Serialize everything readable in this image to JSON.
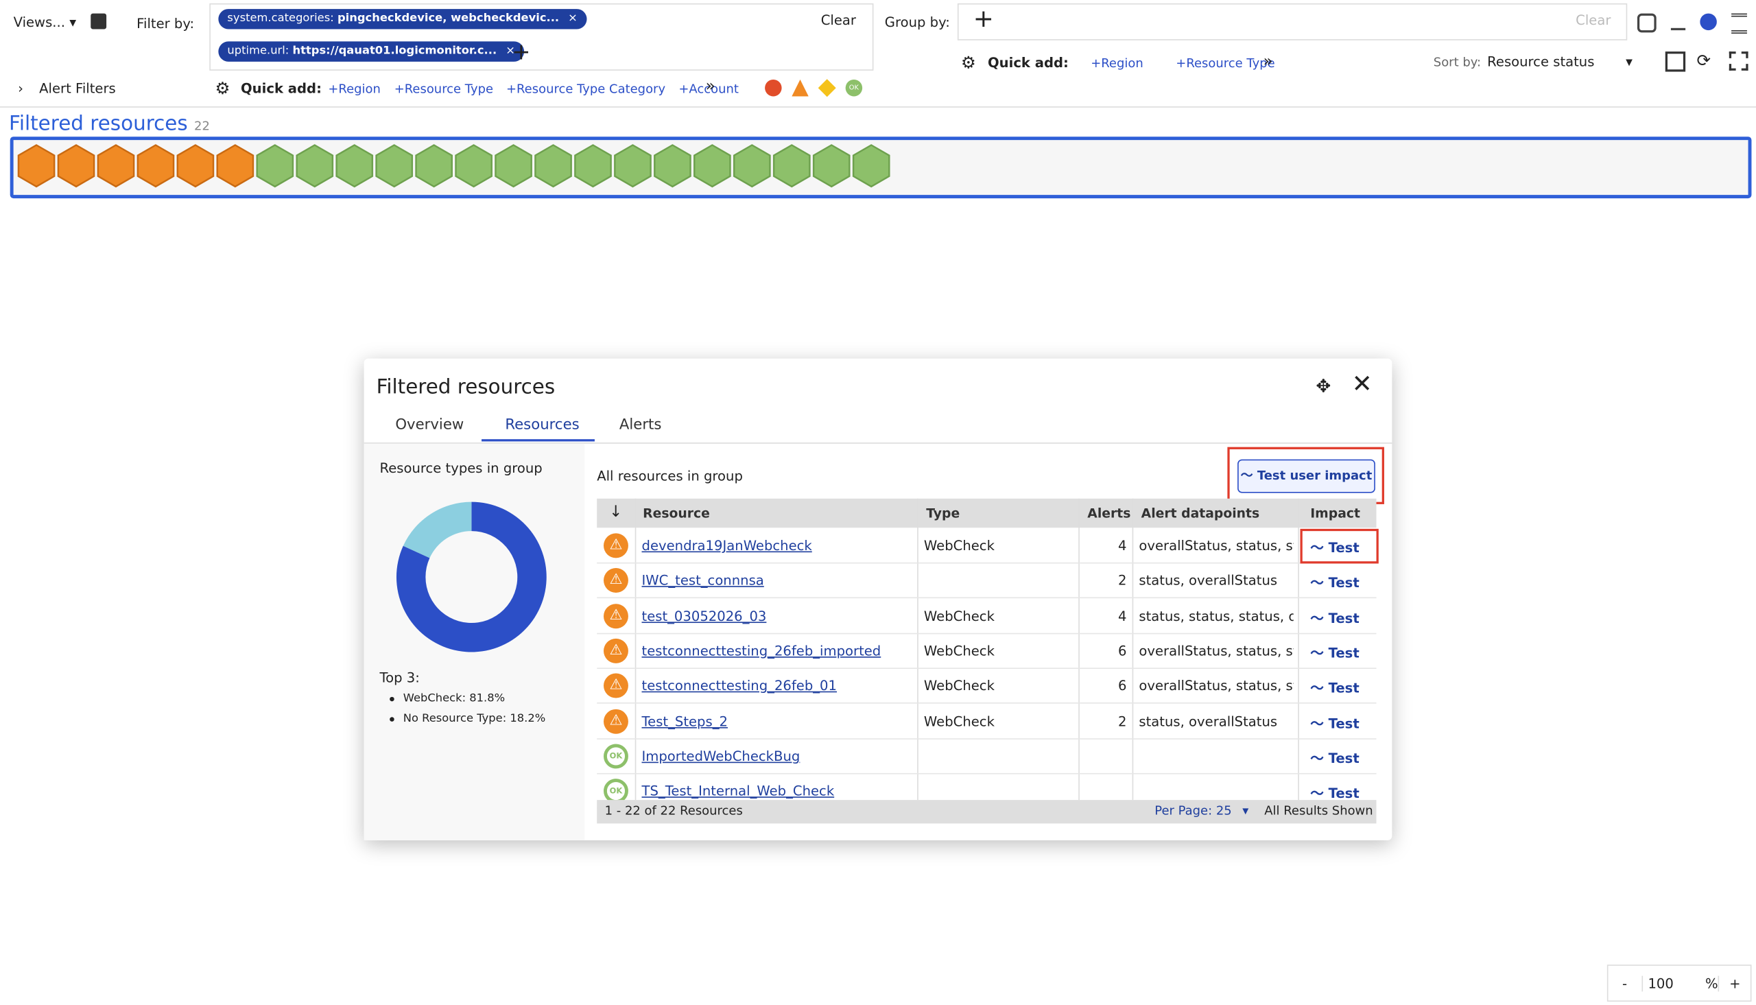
{
  "toolbar": {
    "views": "Views...",
    "filter_by": "Filter by:",
    "chips": [
      {
        "key": "system.categories:",
        "value": "pingcheckdevice, webcheckdevic..."
      },
      {
        "key": "uptime.url:",
        "value": "https://qauat01.logicmonitor.c..."
      }
    ],
    "clear": "Clear",
    "group_by": "Group by:",
    "group_clear": "Clear",
    "alert_filters": "Alert Filters",
    "quick_add": "Quick add:",
    "quick_links": [
      "+Region",
      "+Resource Type",
      "+Resource Type Category",
      "+Account"
    ],
    "quick_add_right": "Quick add:",
    "quick_links_right": [
      "+Region",
      "+Resource Type"
    ],
    "sort_by": "Sort by:",
    "sort_value": "Resource status",
    "ok_badge": "OK"
  },
  "overview": {
    "title": "Filtered resources",
    "count": 22,
    "hex_statuses": [
      "warning",
      "warning",
      "warning",
      "warning",
      "warning",
      "warning",
      "ok",
      "ok",
      "ok",
      "ok",
      "ok",
      "ok",
      "ok",
      "ok",
      "ok",
      "ok",
      "ok",
      "ok",
      "ok",
      "ok",
      "ok",
      "ok"
    ]
  },
  "modal": {
    "title": "Filtered resources",
    "tabs": [
      "Overview",
      "Resources",
      "Alerts"
    ],
    "active_tab": 1,
    "types_heading": "Resource types in group",
    "top_heading": "Top 3:",
    "donut": [
      {
        "name": "WebCheck",
        "value": 81.8,
        "label": "WebCheck: 81.8%",
        "color": "#2c4fc7"
      },
      {
        "name": "No Resource Type",
        "value": 18.2,
        "label": "No Resource Type: 18.2%",
        "color": "#8ccfe0"
      }
    ],
    "all_heading": "All resources in group",
    "impact_button": "Test user impact",
    "columns": [
      "Resource",
      "Type",
      "Alerts",
      "Alert datapoints",
      "Impact"
    ],
    "rows": [
      {
        "status": "warning",
        "resource": "devendra19JanWebcheck",
        "type": "WebCheck",
        "alerts": 4,
        "datapoints": "overallStatus, status, statu",
        "impact": "Test"
      },
      {
        "status": "warning",
        "resource": "IWC_test_connnsa",
        "type": null,
        "alerts": 2,
        "datapoints": "status, overallStatus",
        "impact": "Test"
      },
      {
        "status": "warning",
        "resource": "test_03052026_03",
        "type": "WebCheck",
        "alerts": 4,
        "datapoints": "status, status, status, overa",
        "impact": "Test"
      },
      {
        "status": "warning",
        "resource": "testconnecttesting_26feb_imported",
        "type": "WebCheck",
        "alerts": 6,
        "datapoints": "overallStatus, status, statu",
        "impact": "Test"
      },
      {
        "status": "warning",
        "resource": "testconnecttesting_26feb_01",
        "type": "WebCheck",
        "alerts": 6,
        "datapoints": "overallStatus, status, statu",
        "impact": "Test"
      },
      {
        "status": "warning",
        "resource": "Test_Steps_2",
        "type": "WebCheck",
        "alerts": 2,
        "datapoints": "status, overallStatus",
        "impact": "Test"
      },
      {
        "status": "ok",
        "resource": "ImportedWebCheckBug",
        "type": null,
        "alerts": null,
        "datapoints": null,
        "impact": "Test"
      },
      {
        "status": "ok",
        "resource": "TS_Test_Internal_Web_Check",
        "type": null,
        "alerts": null,
        "datapoints": null,
        "impact": "Test"
      }
    ],
    "footer_range": "1 - 22 of 22 Resources",
    "per_page": "Per Page: 25",
    "all_shown": "All Results Shown"
  },
  "zoom": {
    "minus": "-",
    "value": "100",
    "unit": "%",
    "plus": "+"
  }
}
